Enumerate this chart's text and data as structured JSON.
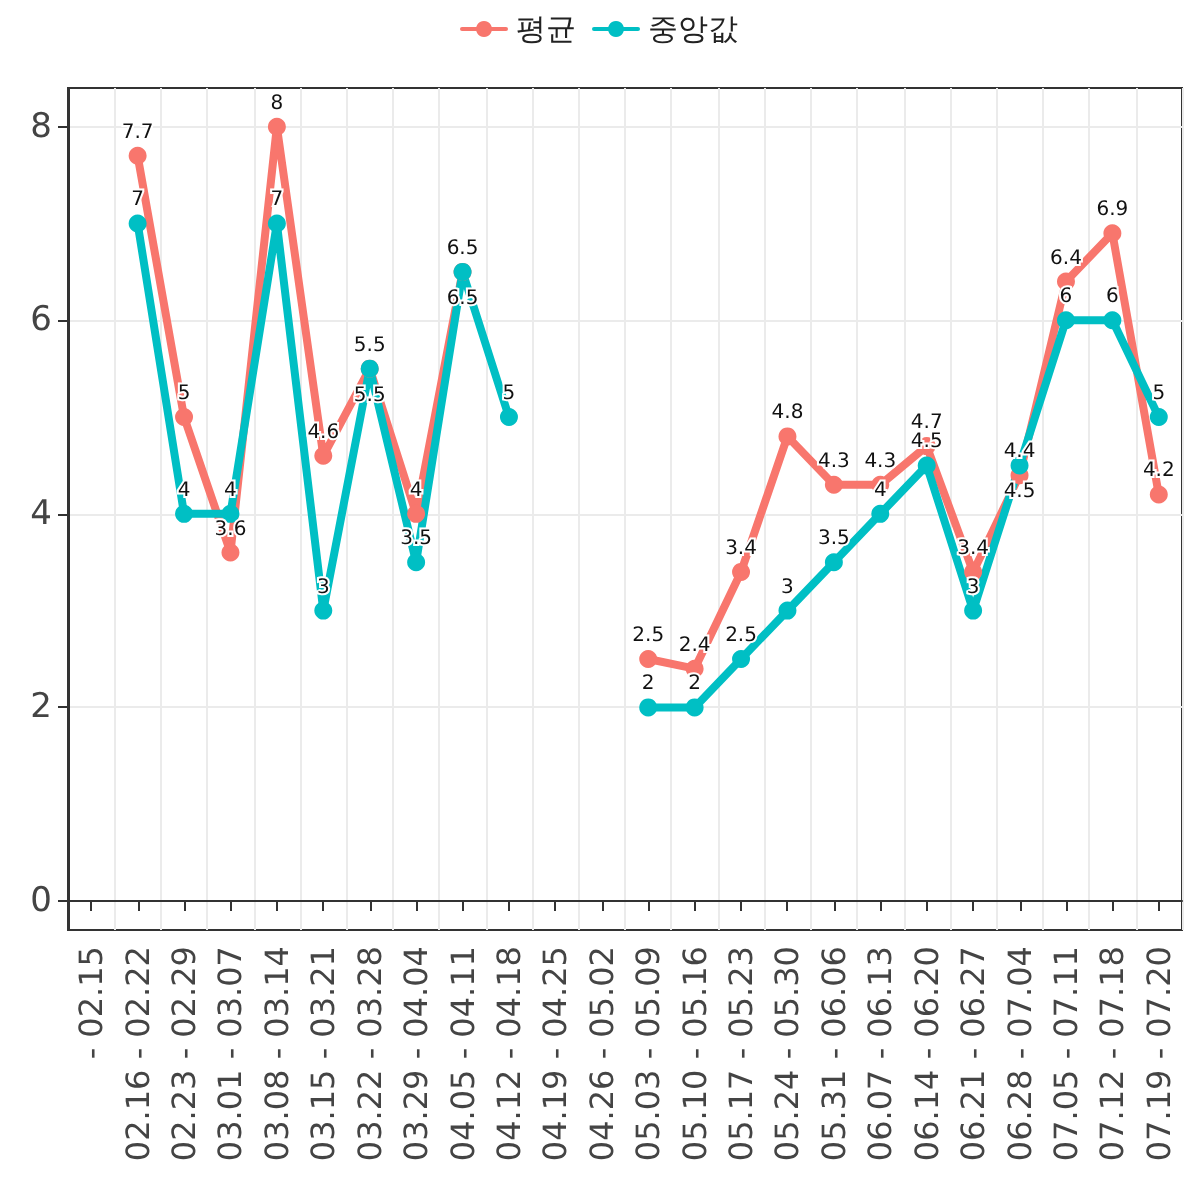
{
  "chart_data": {
    "type": "line",
    "categories": [
      "- 02.15",
      "02.16 - 02.22",
      "02.23 - 02.29",
      "03.01 - 03.07",
      "03.08 - 03.14",
      "03.15 - 03.21",
      "03.22 - 03.28",
      "03.29 - 04.04",
      "04.05 - 04.11",
      "04.12 - 04.18",
      "04.19 - 04.25",
      "04.26 - 05.02",
      "05.03 - 05.09",
      "05.10 - 05.16",
      "05.17 - 05.23",
      "05.24 - 05.30",
      "05.31 - 06.06",
      "06.07 - 06.13",
      "06.14 - 06.20",
      "06.21 - 06.27",
      "06.28 - 07.04",
      "07.05 - 07.11",
      "07.12 - 07.18",
      "07.19 - 07.20"
    ],
    "series": [
      {
        "name": "평균",
        "color": "#f8766d",
        "values": [
          null,
          7.7,
          5,
          3.6,
          8,
          4.6,
          5.5,
          4,
          6.5,
          null,
          null,
          null,
          2.5,
          2.4,
          3.4,
          4.8,
          4.3,
          4.3,
          4.7,
          3.4,
          4.4,
          6.4,
          6.9,
          4.2
        ]
      },
      {
        "name": "중앙값",
        "color": "#00bfc4",
        "values": [
          null,
          7,
          4,
          4,
          7,
          3,
          5.5,
          3.5,
          6.5,
          5,
          null,
          null,
          2,
          2,
          2.5,
          3,
          3.5,
          4,
          4.5,
          3,
          4.5,
          6,
          6,
          5
        ]
      }
    ],
    "ylim": [
      -0.3,
      8.4
    ],
    "yticks": [
      0,
      2,
      4,
      6,
      8
    ],
    "grid": true,
    "legend": "top",
    "marker": "circle",
    "line_style": "solid",
    "data_labels": true
  }
}
